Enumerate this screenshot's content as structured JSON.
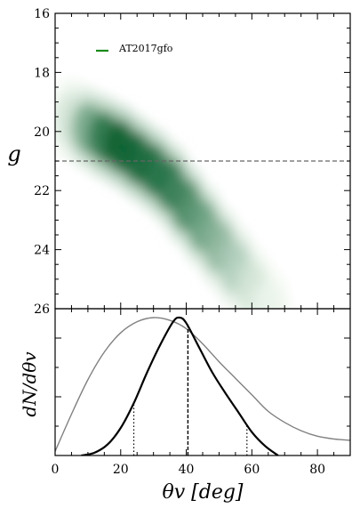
{
  "chart_data": [
    {
      "type": "heatmap",
      "ylabel": "g",
      "xlim": [
        0,
        90
      ],
      "ylim": [
        26,
        16
      ],
      "y_ticks": [
        "16",
        "18",
        "20",
        "22",
        "24",
        "26"
      ],
      "legend": {
        "label": "AT2017gfo",
        "color": "#1a8a1a",
        "position": "top-left"
      },
      "hline": {
        "y": 21.0,
        "style": "dashed",
        "color": "#666666"
      },
      "colormap": "Greens",
      "density_band": {
        "x": [
          5,
          10,
          15,
          20,
          25,
          30,
          35,
          40,
          45,
          50,
          55,
          60,
          65
        ],
        "center_g": [
          19.6,
          19.9,
          20.2,
          20.5,
          20.9,
          21.3,
          21.8,
          22.5,
          23.2,
          23.9,
          24.6,
          25.3,
          26.0
        ],
        "peak_density": [
          0.15,
          0.55,
          0.85,
          1.0,
          0.95,
          0.9,
          0.85,
          0.75,
          0.6,
          0.45,
          0.3,
          0.15,
          0.05
        ]
      }
    },
    {
      "type": "line",
      "ylabel": "dN/dθv",
      "xlabel": "θv [deg]",
      "xlim": [
        0,
        90
      ],
      "x_ticks": [
        "0",
        "20",
        "40",
        "60",
        "80"
      ],
      "series": [
        {
          "color": "#808080",
          "x": [
            0,
            5,
            10,
            15,
            20,
            25,
            30,
            35,
            40,
            45,
            50,
            55,
            60,
            65,
            70,
            75,
            80,
            85,
            90
          ],
          "y": [
            0.03,
            0.3,
            0.55,
            0.75,
            0.89,
            0.97,
            1.0,
            0.98,
            0.92,
            0.81,
            0.68,
            0.56,
            0.44,
            0.32,
            0.24,
            0.18,
            0.14,
            0.12,
            0.11
          ]
        },
        {
          "color": "#000000",
          "x": [
            8,
            12,
            16,
            20,
            24,
            28,
            32,
            36,
            38,
            40,
            44,
            48,
            52,
            56,
            60,
            64,
            68
          ],
          "y": [
            0.0,
            0.02,
            0.08,
            0.2,
            0.38,
            0.6,
            0.8,
            0.97,
            1.0,
            0.96,
            0.78,
            0.6,
            0.45,
            0.31,
            0.17,
            0.07,
            0.0
          ]
        }
      ],
      "vlines": [
        {
          "x": 24,
          "y": 0.38,
          "style": "dotted"
        },
        {
          "x": 40.5,
          "y": 0.95,
          "style": "dashed"
        },
        {
          "x": 58.5,
          "y": 0.23,
          "style": "dotted"
        }
      ]
    }
  ]
}
